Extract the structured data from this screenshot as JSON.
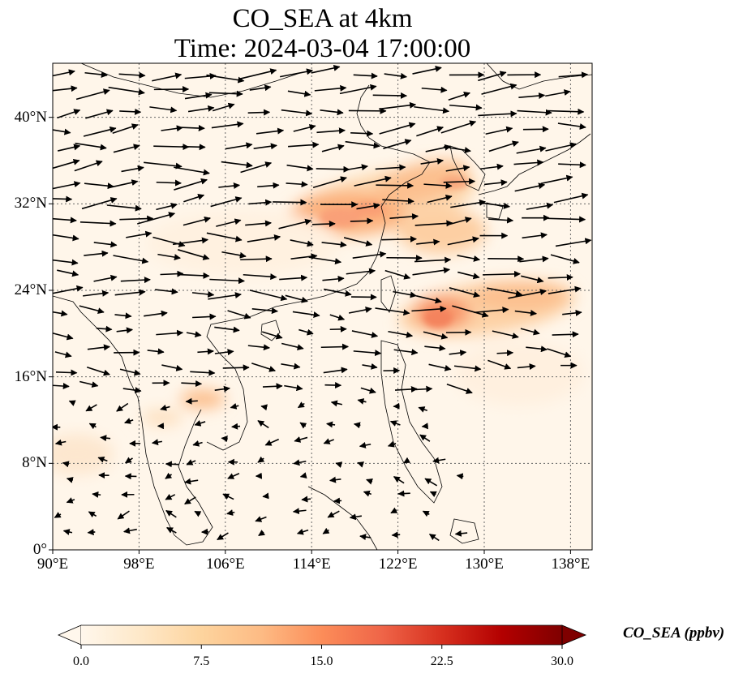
{
  "title": {
    "line1": "CO_SEA at 4km",
    "line2": "Time: 2024-03-04 17:00:00"
  },
  "map": {
    "lon_range": [
      90,
      140
    ],
    "lat_range": [
      0,
      45
    ],
    "lon_ticks": [
      90,
      98,
      106,
      114,
      122,
      130,
      138
    ],
    "lon_tick_labels": [
      "90°E",
      "98°E",
      "106°E",
      "114°E",
      "122°E",
      "130°E",
      "138°E"
    ],
    "lat_ticks": [
      0,
      8,
      16,
      24,
      32,
      40
    ],
    "lat_tick_labels": [
      "0°",
      "8°N",
      "16°N",
      "24°N",
      "32°N",
      "40°N"
    ],
    "gridlines": true,
    "background_color": "#fff6ea",
    "coastline_color": "#000000",
    "vector_color": "#000000"
  },
  "colorbar": {
    "label": "CO_SEA (ppbv)",
    "min": 0.0,
    "max": 30.0,
    "ticks": [
      0.0,
      7.5,
      15.0,
      22.5,
      30.0
    ],
    "tick_labels": [
      "0.0",
      "7.5",
      "15.0",
      "22.5",
      "30.0"
    ],
    "colormap": "OrRd",
    "colors": [
      "#fff7ec",
      "#fee8c8",
      "#fdd49e",
      "#fdbb84",
      "#fc8d59",
      "#ef6548",
      "#d7301f",
      "#b30000",
      "#7f0000"
    ],
    "extend": "both"
  }
}
